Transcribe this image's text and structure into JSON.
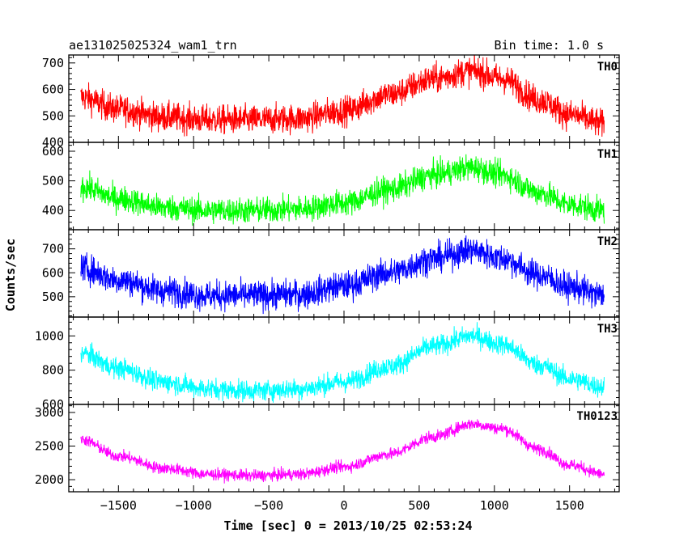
{
  "header": {
    "left": "ae131025025324_wam1_trn",
    "right": "Bin time: 1.0 s"
  },
  "chart_data": {
    "type": "line",
    "title": "ae131025025324_wam1_trn",
    "subtitle": "Bin time: 1.0 s",
    "xlabel": "Time [sec] 0 = 2013/10/25 02:53:24",
    "ylabel": "Counts/sec",
    "xlim": [
      -1830,
      1830
    ],
    "x_ticks": [
      -1500,
      -1000,
      -500,
      0,
      500,
      1000,
      1500
    ],
    "x_tick_labels": [
      "−1500",
      "−1000",
      "−500",
      "0",
      "500",
      "1000",
      "1500"
    ],
    "x_range_data": [
      -1750,
      1730
    ],
    "grid": false,
    "series": [
      {
        "name": "TH0",
        "color": "#ff0000",
        "ylim": [
          400,
          730
        ],
        "y_ticks": [
          400,
          500,
          600,
          700
        ],
        "noise": 50,
        "trend": {
          "x": [
            -1750,
            -1500,
            -1200,
            -900,
            -600,
            -300,
            0,
            300,
            600,
            850,
            1050,
            1300,
            1500,
            1730
          ],
          "y": [
            570,
            525,
            495,
            485,
            485,
            490,
            520,
            580,
            640,
            670,
            640,
            560,
            505,
            470
          ]
        }
      },
      {
        "name": "TH1",
        "color": "#00ff00",
        "ylim": [
          335,
          630
        ],
        "y_ticks": [
          400,
          500,
          600
        ],
        "noise": 40,
        "trend": {
          "x": [
            -1750,
            -1500,
            -1200,
            -900,
            -600,
            -300,
            0,
            300,
            600,
            850,
            1050,
            1300,
            1500,
            1730
          ],
          "y": [
            480,
            440,
            410,
            400,
            400,
            405,
            425,
            470,
            520,
            545,
            520,
            460,
            420,
            400
          ]
        }
      },
      {
        "name": "TH2",
        "color": "#0000ff",
        "ylim": [
          415,
          780
        ],
        "y_ticks": [
          500,
          600,
          700
        ],
        "noise": 55,
        "trend": {
          "x": [
            -1750,
            -1500,
            -1200,
            -900,
            -600,
            -300,
            0,
            300,
            600,
            850,
            1050,
            1300,
            1500,
            1730
          ],
          "y": [
            620,
            570,
            525,
            505,
            505,
            510,
            545,
            600,
            660,
            695,
            660,
            590,
            540,
            505
          ]
        }
      },
      {
        "name": "TH3",
        "color": "#00ffff",
        "ylim": [
          600,
          1110
        ],
        "y_ticks": [
          600,
          800,
          1000
        ],
        "noise": 55,
        "trend": {
          "x": [
            -1750,
            -1500,
            -1200,
            -900,
            -600,
            -300,
            0,
            300,
            600,
            850,
            1050,
            1300,
            1500,
            1730
          ],
          "y": [
            900,
            810,
            730,
            690,
            680,
            690,
            730,
            820,
            940,
            1000,
            950,
            830,
            750,
            700
          ]
        }
      },
      {
        "name": "TH0123",
        "color": "#ff00ff",
        "ylim": [
          1820,
          3120
        ],
        "y_ticks": [
          2000,
          2500,
          3000
        ],
        "noise": 80,
        "trend": {
          "x": [
            -1750,
            -1500,
            -1200,
            -900,
            -600,
            -300,
            0,
            300,
            600,
            850,
            1050,
            1300,
            1500,
            1730
          ],
          "y": [
            2600,
            2350,
            2170,
            2080,
            2060,
            2080,
            2190,
            2380,
            2640,
            2830,
            2760,
            2450,
            2220,
            2080
          ]
        }
      }
    ]
  }
}
